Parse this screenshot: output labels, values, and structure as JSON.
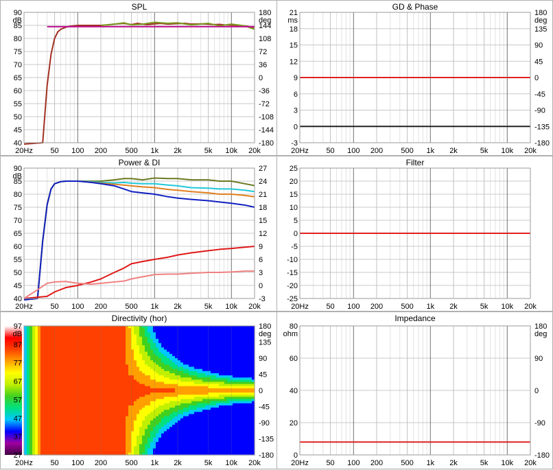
{
  "x_ticks": [
    "20Hz",
    "50",
    "100",
    "200",
    "500",
    "1k",
    "2k",
    "5k",
    "10k",
    "20k"
  ],
  "panels": [
    {
      "id": "spl",
      "title": "SPL",
      "left_unit": "dB",
      "right_unit": "deg",
      "left_ticks": [
        "90",
        "85",
        "80",
        "75",
        "70",
        "65",
        "60",
        "55",
        "50",
        "45",
        "40"
      ],
      "right_ticks": [
        "180",
        "144",
        "108",
        "72",
        "36",
        "0",
        "-36",
        "-72",
        "-108",
        "-144",
        "-180"
      ]
    },
    {
      "id": "gd",
      "title": "GD & Phase",
      "left_unit": "ms",
      "right_unit": "deg",
      "left_ticks": [
        "21",
        "18",
        "15",
        "12",
        "9",
        "6",
        "3",
        "0",
        "-3"
      ],
      "right_ticks": [
        "180",
        "135",
        "90",
        "45",
        "0",
        "-45",
        "-90",
        "-135",
        "-180"
      ]
    },
    {
      "id": "power",
      "title": "Power & DI",
      "left_unit": "dB",
      "right_unit": "",
      "left_ticks": [
        "90",
        "85",
        "80",
        "75",
        "70",
        "65",
        "60",
        "55",
        "50",
        "45",
        "40"
      ],
      "right_ticks": [
        "27",
        "24",
        "21",
        "18",
        "15",
        "12",
        "9",
        "6",
        "3",
        "0",
        "-3"
      ]
    },
    {
      "id": "filter",
      "title": "Filter",
      "left_unit": "",
      "right_unit": "",
      "left_ticks": [
        "25",
        "20",
        "15",
        "10",
        "5",
        "0",
        "-5",
        "-10",
        "-15",
        "-20",
        "-25"
      ],
      "right_ticks": []
    },
    {
      "id": "directivity",
      "title": "Directivity (hor)",
      "left_unit": "dB",
      "right_unit": "deg",
      "left_ticks": [
        "97",
        "87",
        "77",
        "67",
        "57",
        "47",
        "37",
        "27"
      ],
      "right_ticks": [
        "180",
        "135",
        "90",
        "45",
        "0",
        "-45",
        "-90",
        "-135",
        "-180"
      ]
    },
    {
      "id": "impedance",
      "title": "Impedance",
      "left_unit": "ohm",
      "right_unit": "deg",
      "left_ticks": [
        "80",
        "60",
        "40",
        "20",
        "0"
      ],
      "right_ticks": [
        "180",
        "90",
        "0",
        "-90",
        "-180"
      ]
    }
  ],
  "chart_data": [
    {
      "type": "line",
      "title": "SPL",
      "x_scale": "log",
      "xlim": [
        20,
        20000
      ],
      "ylabel": "dB",
      "ylim": [
        40,
        90
      ],
      "y2label": "deg",
      "y2lim": [
        -180,
        180
      ],
      "series": [
        {
          "color": "#a03020",
          "x": [
            20,
            35,
            40,
            45,
            50,
            55,
            60,
            70,
            80,
            100,
            130,
            150,
            200,
            250,
            300,
            400,
            500,
            600,
            700,
            800,
            1000,
            1200,
            1500,
            2000,
            2500,
            3000,
            4000,
            5000,
            6000,
            7000,
            8000,
            10000,
            12000,
            15000,
            17000,
            20000
          ],
          "y": [
            25,
            40,
            62,
            74,
            80,
            82.5,
            83.5,
            84.3,
            84.7,
            85,
            85,
            85,
            85,
            85.2,
            85.5,
            85.8,
            85.3,
            85.8,
            85.5,
            85.3,
            85.6,
            85.8,
            85.5,
            85.7,
            85.8,
            85.5,
            85.6,
            85.5,
            85.3,
            85.4,
            85.2,
            85.1,
            85,
            84.8,
            84.5,
            84.2
          ]
        },
        {
          "color": "#7a9a20",
          "x": [
            200,
            300,
            400,
            500,
            700,
            1000,
            1500,
            2000,
            3000,
            5000,
            7000,
            10000,
            15000,
            20000
          ],
          "y": [
            85,
            85.5,
            86,
            85.2,
            85.5,
            86.2,
            85.8,
            86,
            85.2,
            85.8,
            84.8,
            85.5,
            84.8,
            83.5
          ]
        },
        {
          "color": "#c01090",
          "x": [
            40,
            20000
          ],
          "y": [
            84.5,
            84.5
          ]
        }
      ]
    },
    {
      "type": "line",
      "title": "GD & Phase",
      "x_scale": "log",
      "xlim": [
        20,
        20000
      ],
      "ylabel": "ms",
      "ylim": [
        -3,
        21
      ],
      "y2label": "deg",
      "y2lim": [
        -180,
        180
      ],
      "series": [
        {
          "color": "#e02020",
          "x": [
            20,
            20000
          ],
          "y": [
            9,
            9
          ]
        },
        {
          "color": "#202020",
          "x": [
            20,
            20000
          ],
          "y": [
            0,
            0
          ]
        }
      ]
    },
    {
      "type": "line",
      "title": "Power & DI",
      "x_scale": "log",
      "xlim": [
        20,
        20000
      ],
      "ylabel": "dB",
      "ylim": [
        40,
        90
      ],
      "y2lim": [
        -3,
        27
      ],
      "series": [
        {
          "color": "#6a7a20",
          "x": [
            20,
            30,
            35,
            40,
            45,
            50,
            60,
            70,
            100,
            150,
            200,
            300,
            400,
            500,
            700,
            1000,
            1500,
            2000,
            3000,
            5000,
            7000,
            10000,
            15000,
            20000
          ],
          "y": [
            20,
            40,
            62,
            76,
            82,
            84,
            84.8,
            85,
            85,
            85,
            85,
            85.5,
            86,
            86,
            85.5,
            86.2,
            86,
            86,
            85.5,
            85.5,
            85,
            85,
            84,
            83.3
          ]
        },
        {
          "color": "#20c8d8",
          "x": [
            20,
            30,
            35,
            40,
            45,
            50,
            60,
            70,
            100,
            150,
            200,
            300,
            400,
            500,
            700,
            1000,
            1500,
            2000,
            3000,
            5000,
            7000,
            10000,
            15000,
            20000
          ],
          "y": [
            20,
            40,
            62,
            76,
            82,
            84,
            84.8,
            85,
            85,
            84.8,
            84.5,
            84.3,
            84.5,
            84.2,
            84,
            84,
            83.5,
            83.2,
            82.5,
            82.3,
            82,
            82,
            81.5,
            81
          ]
        },
        {
          "color": "#e08020",
          "x": [
            20,
            30,
            35,
            40,
            45,
            50,
            60,
            70,
            100,
            150,
            200,
            300,
            400,
            500,
            700,
            1000,
            1500,
            2000,
            3000,
            5000,
            7000,
            10000,
            15000,
            20000
          ],
          "y": [
            20,
            40,
            62,
            76,
            82,
            84,
            84.8,
            85,
            85,
            84.6,
            84.2,
            83.8,
            83.5,
            83.2,
            82.8,
            82.5,
            81.8,
            81.5,
            81,
            80.5,
            80,
            80,
            79.5,
            79
          ]
        },
        {
          "color": "#1020c0",
          "x": [
            20,
            30,
            35,
            40,
            45,
            50,
            60,
            70,
            100,
            150,
            200,
            300,
            400,
            500,
            700,
            1000,
            1500,
            2000,
            3000,
            5000,
            7000,
            10000,
            15000,
            20000
          ],
          "y": [
            20,
            40,
            62,
            76,
            82,
            84,
            84.8,
            85,
            85,
            84.5,
            84,
            83.2,
            82,
            81,
            80.5,
            80,
            79,
            78.5,
            78,
            77.5,
            77,
            76.5,
            75.8,
            75
          ]
        },
        {
          "color": "#e01818",
          "x": [
            20,
            40,
            50,
            70,
            100,
            150,
            200,
            300,
            400,
            500,
            700,
            1000,
            1500,
            2000,
            3000,
            5000,
            7000,
            10000,
            15000,
            20000
          ],
          "y": [
            -3,
            -2.5,
            -1.5,
            -0.5,
            0,
            0.8,
            1.5,
            3,
            4,
            5,
            5.5,
            6,
            6.5,
            7,
            7.5,
            8,
            8.3,
            8.5,
            8.8,
            9
          ]
        },
        {
          "color": "#f08080",
          "x": [
            20,
            30,
            40,
            50,
            70,
            100,
            150,
            200,
            300,
            400,
            500,
            700,
            1000,
            1500,
            2000,
            3000,
            5000,
            7000,
            10000,
            15000,
            20000
          ],
          "y": [
            -3,
            -1,
            0.5,
            0.8,
            0.9,
            0.5,
            0.3,
            0.5,
            0.8,
            1,
            1.5,
            2,
            2.5,
            2.6,
            2.6,
            2.8,
            3,
            3,
            3.1,
            3.3,
            3.3
          ]
        }
      ]
    },
    {
      "type": "line",
      "title": "Filter",
      "x_scale": "log",
      "xlim": [
        20,
        20000
      ],
      "ylim": [
        -25,
        25
      ],
      "series": [
        {
          "color": "#e02020",
          "x": [
            20,
            20000
          ],
          "y": [
            0,
            0
          ]
        }
      ]
    },
    {
      "type": "heatmap",
      "title": "Directivity (hor)",
      "x_scale": "log",
      "xlim": [
        20,
        20000
      ],
      "ylabel": "dB",
      "ylim": [
        27,
        97
      ],
      "y2label": "deg",
      "y2lim": [
        -180,
        180
      ],
      "colorscale": [
        "#400040",
        "#a000a0",
        "#0000ff",
        "#00c8ff",
        "#00e080",
        "#40d020",
        "#c0f000",
        "#ffff00",
        "#ffa000",
        "#ff4000",
        "#ff0000",
        "#ffffff"
      ]
    },
    {
      "type": "line",
      "title": "Impedance",
      "x_scale": "log",
      "xlim": [
        20,
        20000
      ],
      "ylabel": "ohm",
      "ylim": [
        0,
        80
      ],
      "y2label": "deg",
      "y2lim": [
        -180,
        180
      ],
      "series": [
        {
          "color": "#e02020",
          "x": [
            20,
            20000
          ],
          "y": [
            8,
            8
          ]
        }
      ]
    }
  ]
}
